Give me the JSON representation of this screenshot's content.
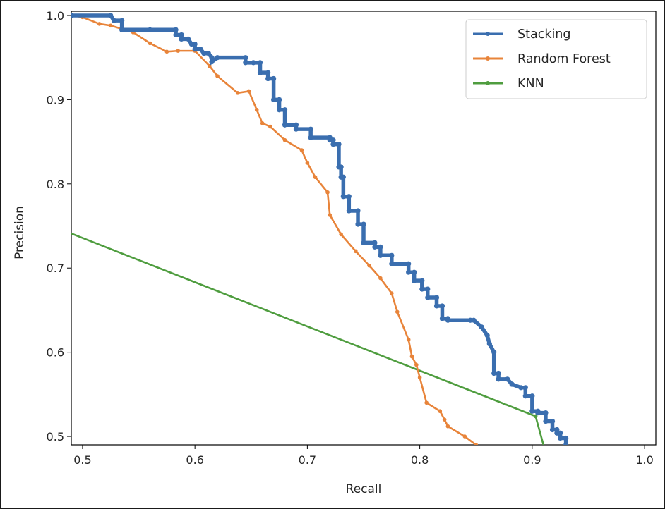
{
  "chart_data": {
    "type": "line",
    "title": "",
    "xlabel": "Recall",
    "ylabel": "Precision",
    "xlim": [
      0.49,
      1.01
    ],
    "ylim": [
      0.49,
      1.005
    ],
    "xticks": [
      0.5,
      0.6,
      0.7,
      0.8,
      0.9,
      1.0
    ],
    "yticks": [
      0.5,
      0.6,
      0.7,
      0.8,
      0.9,
      1.0
    ],
    "xtick_labels": [
      "0.5",
      "0.6",
      "0.7",
      "0.8",
      "0.9",
      "1.0"
    ],
    "ytick_labels": [
      "0.5",
      "0.6",
      "0.7",
      "0.8",
      "0.9",
      "1.0"
    ],
    "grid": false,
    "legend_position": "top-right",
    "series": [
      {
        "name": "Stacking",
        "color": "#3a6eaf",
        "line_style": "thick-stepped-with-dots",
        "x": [
          0.49,
          0.525,
          0.528,
          0.535,
          0.535,
          0.56,
          0.583,
          0.583,
          0.588,
          0.588,
          0.594,
          0.597,
          0.6,
          0.6,
          0.605,
          0.608,
          0.612,
          0.615,
          0.615,
          0.62,
          0.645,
          0.645,
          0.652,
          0.658,
          0.658,
          0.665,
          0.665,
          0.67,
          0.67,
          0.675,
          0.675,
          0.68,
          0.68,
          0.69,
          0.69,
          0.703,
          0.703,
          0.72,
          0.72,
          0.723,
          0.723,
          0.728,
          0.728,
          0.73,
          0.73,
          0.732,
          0.732,
          0.737,
          0.737,
          0.745,
          0.745,
          0.75,
          0.75,
          0.76,
          0.76,
          0.765,
          0.765,
          0.775,
          0.775,
          0.79,
          0.79,
          0.795,
          0.795,
          0.802,
          0.802,
          0.807,
          0.807,
          0.815,
          0.815,
          0.82,
          0.82,
          0.825,
          0.825,
          0.845,
          0.848,
          0.855,
          0.86,
          0.862,
          0.866,
          0.866,
          0.87,
          0.87,
          0.878,
          0.882,
          0.882,
          0.89,
          0.894,
          0.894,
          0.9,
          0.9,
          0.905,
          0.905,
          0.912,
          0.912,
          0.918,
          0.918,
          0.922,
          0.922,
          0.925,
          0.925,
          0.93,
          0.93
        ],
        "y": [
          1.0,
          1.0,
          0.994,
          0.994,
          0.983,
          0.983,
          0.983,
          0.977,
          0.977,
          0.972,
          0.972,
          0.966,
          0.966,
          0.96,
          0.96,
          0.955,
          0.955,
          0.95,
          0.945,
          0.95,
          0.95,
          0.944,
          0.944,
          0.944,
          0.932,
          0.932,
          0.925,
          0.925,
          0.9,
          0.9,
          0.888,
          0.888,
          0.87,
          0.87,
          0.865,
          0.865,
          0.855,
          0.855,
          0.852,
          0.852,
          0.847,
          0.847,
          0.82,
          0.82,
          0.808,
          0.808,
          0.785,
          0.785,
          0.768,
          0.768,
          0.752,
          0.752,
          0.73,
          0.73,
          0.725,
          0.725,
          0.715,
          0.715,
          0.705,
          0.705,
          0.695,
          0.695,
          0.685,
          0.685,
          0.675,
          0.675,
          0.665,
          0.665,
          0.655,
          0.655,
          0.64,
          0.64,
          0.638,
          0.638,
          0.638,
          0.63,
          0.62,
          0.61,
          0.6,
          0.575,
          0.575,
          0.568,
          0.568,
          0.562,
          0.562,
          0.558,
          0.558,
          0.548,
          0.548,
          0.53,
          0.53,
          0.528,
          0.528,
          0.518,
          0.518,
          0.508,
          0.508,
          0.504,
          0.504,
          0.498,
          0.498,
          0.49
        ]
      },
      {
        "name": "Random Forest",
        "color": "#e8843a",
        "line_style": "line-with-dots",
        "x": [
          0.49,
          0.5,
          0.515,
          0.525,
          0.545,
          0.56,
          0.575,
          0.585,
          0.6,
          0.613,
          0.62,
          0.638,
          0.648,
          0.655,
          0.66,
          0.667,
          0.68,
          0.695,
          0.7,
          0.707,
          0.718,
          0.72,
          0.73,
          0.743,
          0.755,
          0.765,
          0.775,
          0.78,
          0.79,
          0.793,
          0.797,
          0.8,
          0.806,
          0.818,
          0.822,
          0.825,
          0.84,
          0.85
        ],
        "y": [
          1.0,
          0.998,
          0.99,
          0.988,
          0.98,
          0.967,
          0.957,
          0.958,
          0.958,
          0.94,
          0.928,
          0.908,
          0.91,
          0.888,
          0.872,
          0.868,
          0.852,
          0.84,
          0.825,
          0.808,
          0.79,
          0.763,
          0.74,
          0.72,
          0.703,
          0.688,
          0.67,
          0.648,
          0.615,
          0.595,
          0.585,
          0.57,
          0.54,
          0.53,
          0.52,
          0.512,
          0.5,
          0.49
        ]
      },
      {
        "name": "KNN",
        "color": "#4f9d3f",
        "line_style": "line",
        "x": [
          0.49,
          0.903,
          0.91
        ],
        "y": [
          0.741,
          0.524,
          0.49
        ]
      }
    ]
  }
}
